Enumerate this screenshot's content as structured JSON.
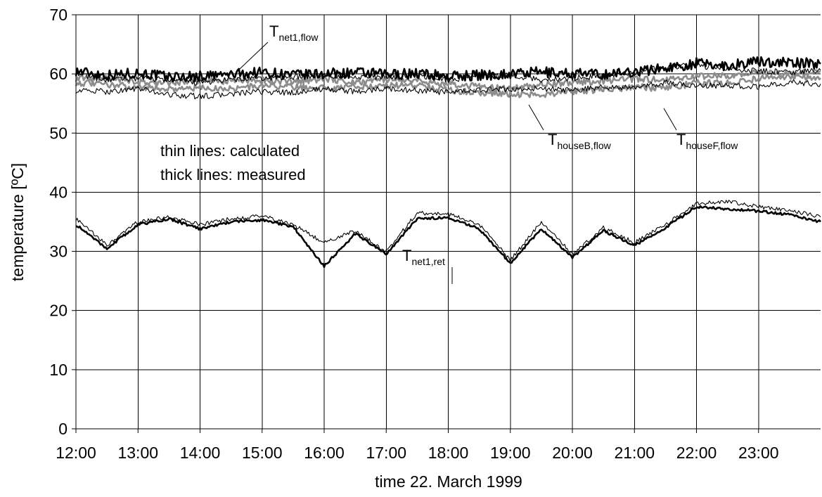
{
  "chart_data": {
    "type": "line",
    "title": "",
    "xlabel": "time  22. March 1999",
    "ylabel": "temperature  [ºC]",
    "ylim": [
      0,
      70
    ],
    "yticks": [
      "0",
      "10",
      "20",
      "30",
      "40",
      "50",
      "60",
      "70"
    ],
    "xlim": [
      "12:00",
      "24:00"
    ],
    "xticks": [
      "12:00",
      "13:00",
      "14:00",
      "15:00",
      "16:00",
      "17:00",
      "18:00",
      "19:00",
      "20:00",
      "21:00",
      "22:00",
      "23:00"
    ],
    "grid": true,
    "annotations": [
      "thin lines: calculated",
      "thick lines: measured"
    ],
    "series_labels": [
      {
        "id": "net1_flow",
        "base": "T",
        "sub": "net1,flow"
      },
      {
        "id": "houseB_flow",
        "base": "T",
        "sub": "houseB,flow"
      },
      {
        "id": "houseF_flow",
        "base": "T",
        "sub": "houseF,flow"
      },
      {
        "id": "net1_ret",
        "base": "T",
        "sub": "net1,ret"
      }
    ],
    "x": [
      "12:00",
      "12:30",
      "13:00",
      "13:30",
      "14:00",
      "14:30",
      "15:00",
      "15:30",
      "16:00",
      "16:30",
      "17:00",
      "17:30",
      "18:00",
      "18:30",
      "19:00",
      "19:30",
      "20:00",
      "20:30",
      "21:00",
      "21:30",
      "22:00",
      "22:30",
      "23:00",
      "23:30",
      "24:00"
    ],
    "series": [
      {
        "style": "thick",
        "color": "#000000",
        "noise": 0.9,
        "values": [
          60.5,
          59.8,
          60.2,
          59.5,
          59.6,
          59.9,
          60.3,
          59.8,
          60.0,
          60.2,
          59.9,
          60.1,
          59.6,
          59.8,
          60.0,
          60.3,
          60.1,
          59.9,
          60.4,
          61.0,
          61.8,
          61.4,
          62.1,
          61.9,
          61.7
        ]
      },
      {
        "style": "thin",
        "color": "#000000",
        "noise": 0.5,
        "values": [
          60.0,
          59.0,
          59.3,
          59.0,
          58.5,
          59.0,
          59.2,
          59.5,
          59.8,
          59.6,
          59.4,
          59.8,
          59.0,
          59.6,
          59.8,
          59.0,
          59.3,
          59.7,
          60.3,
          61.2,
          61.5,
          60.8,
          60.5,
          60.3,
          60.6
        ]
      },
      {
        "style": "thin",
        "color": "#000000",
        "noise": 0.5,
        "values": [
          57.2,
          57.0,
          57.5,
          56.5,
          56.2,
          56.6,
          57.0,
          56.8,
          57.5,
          57.0,
          57.5,
          57.2,
          56.8,
          57.3,
          57.4,
          57.5,
          57.2,
          57.8,
          57.6,
          58.5,
          58.0,
          58.0,
          57.8,
          58.6,
          58.3
        ]
      },
      {
        "style": "grey",
        "color": "#8c8c8c",
        "noise": 0.55,
        "values": [
          58.5,
          58.2,
          57.8,
          57.5,
          57.6,
          57.5,
          58.0,
          57.8,
          57.6,
          57.9,
          58.0,
          58.2,
          57.3,
          56.8,
          56.6,
          56.5,
          57.0,
          57.4,
          57.8,
          57.5,
          58.5,
          58.4,
          59.2,
          59.4,
          59.3
        ]
      },
      {
        "style": "grey",
        "color": "#8c8c8c",
        "noise": 0.55,
        "values": [
          59.2,
          59.4,
          58.6,
          58.5,
          58.8,
          58.8,
          59.0,
          58.6,
          59.2,
          58.6,
          59.1,
          58.8,
          58.4,
          57.8,
          57.5,
          58.2,
          58.6,
          58.8,
          59.2,
          59.0,
          59.6,
          59.7,
          60.2,
          60.0,
          60.4
        ]
      },
      {
        "style": "thin",
        "color": "#000000",
        "noise": 0.35,
        "values": [
          35.5,
          31.0,
          35.0,
          35.8,
          34.5,
          35.5,
          36.0,
          34.5,
          31.5,
          33.5,
          30.0,
          36.5,
          36.3,
          34.5,
          28.5,
          35.0,
          29.5,
          34.0,
          31.5,
          34.5,
          38.0,
          38.5,
          37.5,
          37.0,
          35.8
        ]
      },
      {
        "style": "thick",
        "color": "#000000",
        "noise": 0.22,
        "values": [
          34.5,
          30.5,
          34.5,
          35.5,
          33.8,
          35.0,
          35.3,
          34.2,
          27.5,
          33.0,
          29.5,
          35.5,
          35.7,
          33.8,
          28.0,
          33.8,
          29.0,
          33.5,
          31.0,
          34.0,
          37.5,
          37.2,
          36.8,
          36.2,
          35.0
        ]
      }
    ]
  }
}
